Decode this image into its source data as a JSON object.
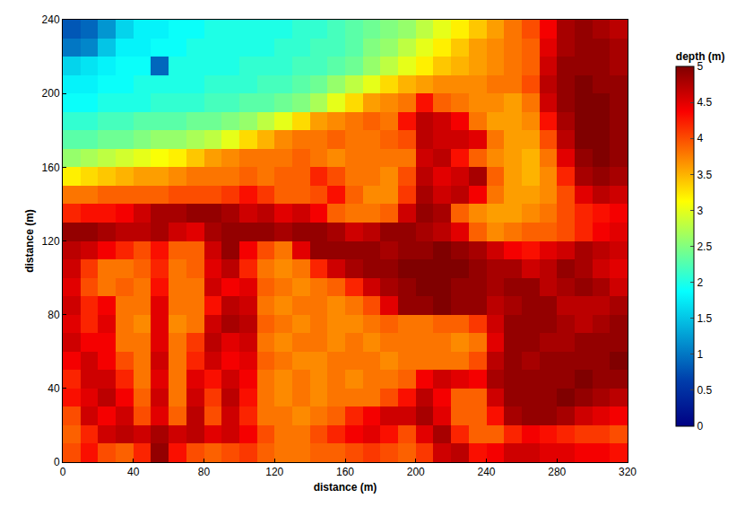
{
  "chart_data": {
    "type": "heatmap",
    "x_label": "distance (m)",
    "y_label": "distance (m)",
    "color": "Jet",
    "x": [
      5,
      15,
      25,
      35,
      45,
      55,
      65,
      75,
      85,
      95,
      105,
      115,
      125,
      135,
      145,
      155,
      165,
      175,
      185,
      195,
      205,
      215,
      225,
      235,
      245,
      255,
      265,
      275,
      285,
      295,
      305,
      315
    ],
    "y": [
      5,
      15,
      25,
      35,
      45,
      55,
      65,
      75,
      85,
      95,
      105,
      115,
      125,
      135,
      145,
      155,
      165,
      175,
      185,
      195,
      205,
      215,
      225,
      235
    ],
    "z": [
      [
        4.0,
        4.3,
        4.0,
        3.9,
        4.2,
        4.9,
        4.3,
        4.0,
        3.9,
        4.0,
        4.1,
        3.9,
        3.8,
        3.8,
        3.9,
        3.9,
        4.0,
        4.1,
        4.0,
        3.9,
        4.1,
        4.6,
        4.7,
        4.3,
        4.4,
        4.6,
        4.6,
        4.5,
        4.5,
        4.4,
        4.4,
        4.3
      ],
      [
        3.9,
        4.2,
        4.6,
        4.7,
        4.6,
        4.8,
        4.6,
        4.7,
        4.5,
        4.6,
        4.4,
        4.0,
        3.8,
        3.8,
        4.0,
        4.2,
        4.4,
        4.5,
        4.3,
        4.0,
        4.5,
        4.8,
        4.2,
        3.9,
        3.9,
        4.2,
        4.4,
        4.3,
        4.2,
        4.1,
        4.1,
        4.0
      ],
      [
        4.0,
        4.6,
        4.4,
        4.6,
        4.0,
        4.5,
        3.9,
        4.7,
        4.0,
        4.6,
        4.2,
        3.8,
        3.8,
        3.7,
        3.8,
        3.9,
        4.2,
        4.4,
        4.6,
        4.6,
        4.8,
        4.5,
        3.9,
        3.9,
        4.3,
        4.8,
        4.9,
        4.9,
        4.8,
        4.6,
        4.5,
        4.4
      ],
      [
        4.3,
        4.5,
        4.7,
        4.4,
        3.9,
        4.6,
        3.8,
        4.6,
        4.1,
        4.7,
        4.3,
        3.8,
        3.7,
        3.8,
        3.7,
        3.8,
        3.8,
        3.8,
        4.0,
        4.3,
        4.7,
        4.4,
        3.9,
        3.9,
        4.6,
        4.9,
        4.9,
        4.9,
        5.0,
        4.9,
        4.8,
        4.7
      ],
      [
        4.2,
        4.6,
        4.6,
        4.2,
        3.8,
        4.5,
        3.8,
        4.5,
        4.3,
        4.6,
        4.4,
        3.8,
        3.7,
        3.8,
        3.7,
        3.8,
        3.7,
        3.8,
        3.8,
        3.9,
        4.4,
        4.6,
        4.5,
        4.4,
        4.8,
        4.9,
        4.9,
        4.9,
        4.9,
        5.0,
        4.9,
        4.9
      ],
      [
        4.4,
        4.6,
        4.4,
        4.0,
        3.8,
        4.6,
        3.8,
        4.2,
        4.6,
        4.4,
        4.5,
        3.9,
        3.8,
        3.7,
        3.7,
        3.8,
        3.8,
        3.8,
        3.7,
        3.8,
        3.8,
        3.8,
        3.8,
        4.0,
        4.7,
        4.9,
        4.8,
        4.9,
        4.9,
        4.9,
        4.9,
        5.0
      ],
      [
        4.6,
        4.4,
        4.4,
        3.8,
        3.8,
        4.5,
        3.8,
        4.1,
        4.7,
        4.5,
        4.6,
        3.8,
        3.7,
        3.8,
        3.8,
        3.7,
        3.8,
        3.7,
        3.8,
        3.8,
        3.8,
        3.8,
        3.7,
        3.8,
        4.5,
        4.9,
        4.9,
        4.8,
        4.8,
        4.9,
        4.9,
        4.9
      ],
      [
        4.5,
        4.2,
        4.5,
        3.8,
        3.7,
        4.5,
        3.7,
        3.8,
        4.6,
        4.8,
        4.7,
        3.9,
        3.8,
        3.7,
        3.8,
        3.7,
        3.7,
        3.8,
        3.9,
        3.8,
        3.8,
        3.9,
        3.9,
        4.1,
        4.6,
        4.9,
        4.9,
        4.9,
        4.8,
        4.7,
        4.8,
        4.9
      ],
      [
        4.6,
        4.2,
        4.4,
        3.8,
        3.8,
        4.5,
        3.8,
        3.8,
        4.3,
        4.7,
        4.6,
        3.8,
        3.7,
        3.8,
        3.8,
        3.7,
        3.8,
        4.0,
        4.5,
        4.9,
        4.9,
        5.0,
        4.9,
        4.9,
        4.7,
        4.8,
        4.9,
        4.9,
        4.7,
        4.7,
        4.7,
        4.8
      ],
      [
        4.5,
        4.0,
        3.8,
        3.9,
        3.8,
        4.3,
        3.8,
        3.8,
        4.6,
        4.4,
        4.5,
        3.9,
        3.8,
        3.7,
        3.8,
        3.9,
        4.2,
        4.6,
        4.8,
        4.9,
        5.0,
        5.0,
        4.9,
        4.9,
        4.8,
        4.9,
        4.9,
        4.7,
        4.8,
        4.9,
        4.8,
        4.6
      ],
      [
        4.6,
        4.1,
        3.8,
        3.8,
        3.9,
        4.2,
        3.8,
        3.9,
        4.5,
        4.7,
        4.2,
        3.8,
        3.7,
        3.8,
        4.2,
        4.6,
        4.8,
        4.9,
        4.9,
        5.0,
        5.0,
        5.0,
        5.0,
        4.9,
        4.8,
        4.8,
        4.6,
        4.7,
        4.9,
        4.8,
        4.6,
        4.5
      ],
      [
        4.7,
        4.6,
        4.4,
        4.2,
        4.0,
        4.3,
        3.9,
        3.9,
        4.6,
        4.9,
        4.4,
        4.0,
        3.8,
        4.5,
        4.9,
        4.9,
        4.9,
        4.9,
        4.8,
        4.9,
        4.9,
        5.0,
        4.9,
        4.8,
        4.6,
        4.4,
        4.3,
        4.5,
        4.6,
        4.8,
        4.7,
        4.6
      ],
      [
        4.9,
        4.9,
        4.8,
        4.7,
        4.7,
        4.8,
        4.6,
        4.5,
        4.8,
        4.9,
        4.9,
        4.9,
        4.8,
        4.9,
        4.9,
        4.8,
        4.6,
        4.7,
        4.9,
        4.9,
        4.8,
        4.7,
        4.5,
        3.9,
        3.7,
        3.8,
        3.9,
        3.9,
        4.0,
        4.2,
        4.4,
        4.5
      ],
      [
        4.2,
        4.3,
        4.3,
        4.4,
        4.6,
        4.8,
        4.8,
        4.9,
        4.9,
        4.8,
        4.6,
        4.7,
        4.5,
        4.6,
        4.4,
        3.9,
        3.8,
        3.8,
        3.9,
        4.6,
        4.9,
        4.8,
        3.9,
        3.7,
        3.6,
        3.6,
        3.7,
        3.8,
        4.0,
        4.2,
        4.3,
        4.4
      ],
      [
        3.8,
        3.8,
        3.9,
        3.9,
        3.9,
        3.9,
        4.0,
        4.0,
        4.0,
        4.1,
        4.3,
        4.1,
        3.9,
        3.9,
        4.0,
        4.3,
        3.9,
        3.7,
        3.7,
        4.1,
        4.8,
        4.6,
        4.7,
        4.4,
        3.8,
        3.6,
        3.6,
        3.7,
        4.0,
        4.5,
        4.7,
        4.6
      ],
      [
        3.2,
        3.3,
        3.4,
        3.5,
        3.6,
        3.6,
        3.7,
        3.8,
        3.8,
        3.8,
        3.9,
        3.8,
        3.9,
        3.9,
        4.2,
        4.0,
        3.8,
        3.8,
        3.7,
        4.0,
        4.7,
        4.5,
        4.6,
        4.8,
        3.9,
        3.6,
        3.5,
        3.7,
        4.2,
        4.8,
        4.9,
        4.8
      ],
      [
        2.6,
        2.7,
        2.8,
        2.9,
        3.0,
        3.1,
        3.2,
        3.4,
        3.6,
        3.7,
        3.8,
        3.8,
        3.8,
        3.9,
        3.8,
        3.7,
        3.8,
        3.8,
        3.8,
        3.8,
        4.6,
        4.7,
        4.3,
        3.9,
        3.7,
        3.6,
        3.5,
        3.8,
        4.5,
        4.9,
        5.0,
        4.9
      ],
      [
        2.3,
        2.3,
        2.4,
        2.4,
        2.5,
        2.6,
        2.6,
        2.7,
        2.8,
        3.0,
        3.3,
        3.5,
        3.7,
        3.8,
        3.8,
        3.9,
        3.8,
        3.8,
        3.9,
        4.0,
        4.7,
        4.6,
        4.6,
        4.5,
        3.8,
        3.6,
        3.6,
        4.0,
        4.7,
        5.0,
        5.0,
        4.9
      ],
      [
        2.1,
        2.1,
        2.2,
        2.2,
        2.3,
        2.3,
        2.3,
        2.4,
        2.4,
        2.5,
        2.6,
        2.8,
        3.0,
        3.3,
        3.6,
        3.7,
        3.8,
        3.9,
        3.8,
        4.3,
        4.7,
        4.6,
        4.4,
        3.8,
        3.6,
        3.6,
        3.7,
        4.3,
        4.8,
        5.0,
        5.0,
        4.9
      ],
      [
        1.9,
        1.9,
        2.0,
        2.0,
        2.0,
        2.1,
        2.1,
        2.1,
        2.2,
        2.2,
        2.3,
        2.3,
        2.4,
        2.5,
        2.7,
        3.0,
        3.3,
        3.6,
        3.7,
        3.8,
        4.3,
        3.9,
        3.8,
        3.7,
        3.7,
        3.6,
        3.8,
        4.6,
        4.9,
        5.0,
        5.0,
        4.9
      ],
      [
        1.8,
        1.8,
        1.9,
        1.9,
        2.0,
        2.0,
        2.0,
        2.0,
        2.1,
        2.1,
        2.1,
        2.2,
        2.2,
        2.3,
        2.4,
        2.6,
        2.8,
        3.0,
        3.3,
        3.5,
        3.6,
        3.7,
        3.7,
        3.7,
        3.8,
        3.8,
        4.0,
        4.7,
        4.9,
        5.0,
        4.9,
        4.9
      ],
      [
        1.6,
        1.7,
        1.8,
        1.9,
        1.9,
        0.9,
        2.0,
        2.0,
        2.0,
        2.0,
        2.1,
        2.1,
        2.1,
        2.2,
        2.2,
        2.3,
        2.4,
        2.6,
        2.8,
        3.0,
        3.2,
        3.4,
        3.5,
        3.6,
        3.7,
        3.8,
        3.9,
        4.6,
        4.9,
        4.9,
        4.9,
        4.8
      ],
      [
        1.0,
        1.1,
        1.5,
        1.8,
        1.8,
        1.9,
        1.9,
        2.0,
        2.0,
        2.0,
        2.0,
        2.0,
        2.1,
        2.1,
        2.2,
        2.2,
        2.3,
        2.5,
        2.6,
        2.8,
        3.0,
        3.2,
        3.4,
        3.6,
        3.7,
        3.8,
        3.9,
        4.5,
        4.8,
        4.9,
        4.9,
        4.8
      ],
      [
        0.8,
        0.9,
        1.2,
        1.6,
        1.8,
        1.8,
        1.9,
        1.9,
        2.0,
        2.0,
        2.0,
        2.0,
        2.0,
        2.1,
        2.1,
        2.2,
        2.3,
        2.4,
        2.5,
        2.6,
        2.8,
        3.0,
        3.2,
        3.4,
        3.6,
        3.8,
        4.0,
        4.4,
        4.8,
        4.9,
        4.8,
        4.7
      ]
    ],
    "xlim": [
      0,
      320
    ],
    "xticks": [
      0,
      40,
      80,
      120,
      160,
      200,
      240,
      280,
      320
    ],
    "ylim": [
      0,
      240
    ],
    "yticks": [
      0,
      40,
      80,
      120,
      160,
      200,
      240
    ],
    "colorbar": {
      "title": "depth (m)",
      "range": [
        0,
        5
      ],
      "ticks": [
        0,
        0.5,
        1,
        1.5,
        2,
        2.5,
        3,
        3.5,
        4,
        4.5,
        5
      ]
    }
  }
}
